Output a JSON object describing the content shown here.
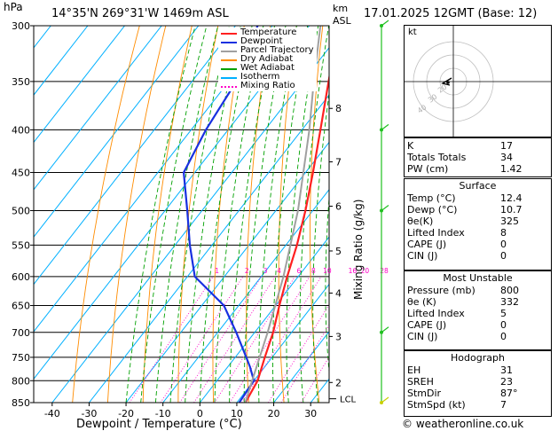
{
  "header": {
    "pressure_unit": "hPa",
    "location": "14°35'N  269°31'W  1469m  ASL",
    "alt_unit_km": "km",
    "alt_unit_asl": "ASL",
    "datetime": "17.01.2025  12GMT  (Base: 12)"
  },
  "chart_data": {
    "type": "skew-t",
    "xlabel": "Dewpoint / Temperature (°C)",
    "ylabel_right": "Mixing Ratio (g/kg)",
    "pressure_levels": [
      300,
      350,
      400,
      450,
      500,
      550,
      600,
      650,
      700,
      750,
      800,
      850
    ],
    "temp_ticks": [
      -40,
      -30,
      -20,
      -10,
      0,
      10,
      20,
      30
    ],
    "xlim": [
      -45,
      35
    ],
    "ylim": [
      850,
      300
    ],
    "km_ticks": [
      {
        "km": "8",
        "p": 377
      },
      {
        "km": "7",
        "p": 437
      },
      {
        "km": "6",
        "p": 494
      },
      {
        "km": "5",
        "p": 559
      },
      {
        "km": "4",
        "p": 628
      },
      {
        "km": "3",
        "p": 708
      },
      {
        "km": "2",
        "p": 804
      }
    ],
    "lcl_label": "LCL",
    "lcl_p": 841,
    "mixing_ratio_labels": [
      "1",
      "2",
      "3",
      "4",
      "6",
      "8",
      "10",
      "16",
      "20",
      "28"
    ],
    "mixing_ratio_values": [
      1,
      2,
      3,
      4,
      6,
      8,
      10,
      16,
      20,
      28
    ],
    "series": [
      {
        "name": "Temperature",
        "color": "#ff2020",
        "points": [
          [
            853,
            12.4
          ],
          [
            800,
            11
          ],
          [
            750,
            8
          ],
          [
            700,
            5
          ],
          [
            650,
            1
          ],
          [
            600,
            -3
          ],
          [
            550,
            -7
          ],
          [
            500,
            -12
          ],
          [
            450,
            -18
          ],
          [
            400,
            -25
          ],
          [
            350,
            -33
          ],
          [
            300,
            -42
          ]
        ]
      },
      {
        "name": "Dewpoint",
        "color": "#1830e0",
        "points": [
          [
            853,
            10.7
          ],
          [
            800,
            10
          ],
          [
            770,
            6
          ],
          [
            750,
            3
          ],
          [
            700,
            -5
          ],
          [
            650,
            -14
          ],
          [
            600,
            -28
          ],
          [
            550,
            -36
          ],
          [
            500,
            -44
          ],
          [
            450,
            -53
          ],
          [
            400,
            -56
          ],
          [
            350,
            -58
          ],
          [
            300,
            -64
          ]
        ]
      },
      {
        "name": "Parcel Trajectory",
        "color": "#a0a0a0",
        "points": [
          [
            853,
            12.4
          ],
          [
            841,
            11.8
          ],
          [
            800,
            9.5
          ],
          [
            700,
            3.5
          ],
          [
            600,
            -4
          ],
          [
            500,
            -14
          ],
          [
            400,
            -28
          ],
          [
            350,
            -37
          ],
          [
            300,
            -47
          ]
        ]
      }
    ],
    "legend": [
      "Temperature",
      "Dewpoint",
      "Parcel Trajectory",
      "Dry Adiabat",
      "Wet Adiabat",
      "Isotherm",
      "Mixing Ratio"
    ],
    "legend_colors": [
      "#ff2020",
      "#1830e0",
      "#a0a0a0",
      "#ff8c00",
      "#00a000",
      "#00b0ff",
      "#ff00c8"
    ],
    "legend_styles": [
      "solid",
      "solid",
      "solid",
      "solid",
      "solid",
      "solid",
      "dotted"
    ]
  },
  "wind_barbs": [
    {
      "p": 300,
      "color": "#20c020"
    },
    {
      "p": 400,
      "color": "#20c020"
    },
    {
      "p": 500,
      "color": "#20c020"
    },
    {
      "p": 700,
      "color": "#20c020"
    },
    {
      "p": 850,
      "color": "#c8d000"
    }
  ],
  "hodograph": {
    "unit": "kt",
    "ring_labels": [
      "40",
      "30",
      "20"
    ]
  },
  "indices": {
    "k_label": "K",
    "k_value": "17",
    "tt_label": "Totals Totals",
    "tt_value": "34",
    "pw_label": "PW (cm)",
    "pw_value": "1.42"
  },
  "surface": {
    "title": "Surface",
    "temp_label": "Temp (°C)",
    "temp_value": "12.4",
    "dewp_label": "Dewp (°C)",
    "dewp_value": "10.7",
    "thetae_label": "θe(K)",
    "thetae_value": "325",
    "li_label": "Lifted Index",
    "li_value": "8",
    "cape_label": "CAPE (J)",
    "cape_value": "0",
    "cin_label": "CIN (J)",
    "cin_value": "0"
  },
  "unstable": {
    "title": "Most Unstable",
    "pres_label": "Pressure (mb)",
    "pres_value": "800",
    "thetae_label": "θe (K)",
    "thetae_value": "332",
    "li_label": "Lifted Index",
    "li_value": "5",
    "cape_label": "CAPE (J)",
    "cape_value": "0",
    "cin_label": "CIN (J)",
    "cin_value": "0"
  },
  "hodo_idx": {
    "title": "Hodograph",
    "eh_label": "EH",
    "eh_value": "31",
    "sreh_label": "SREH",
    "sreh_value": "23",
    "dir_label": "StmDir",
    "dir_value": "87°",
    "spd_label": "StmSpd (kt)",
    "spd_value": "7"
  },
  "footer": {
    "copyright": "© weatheronline.co.uk"
  }
}
